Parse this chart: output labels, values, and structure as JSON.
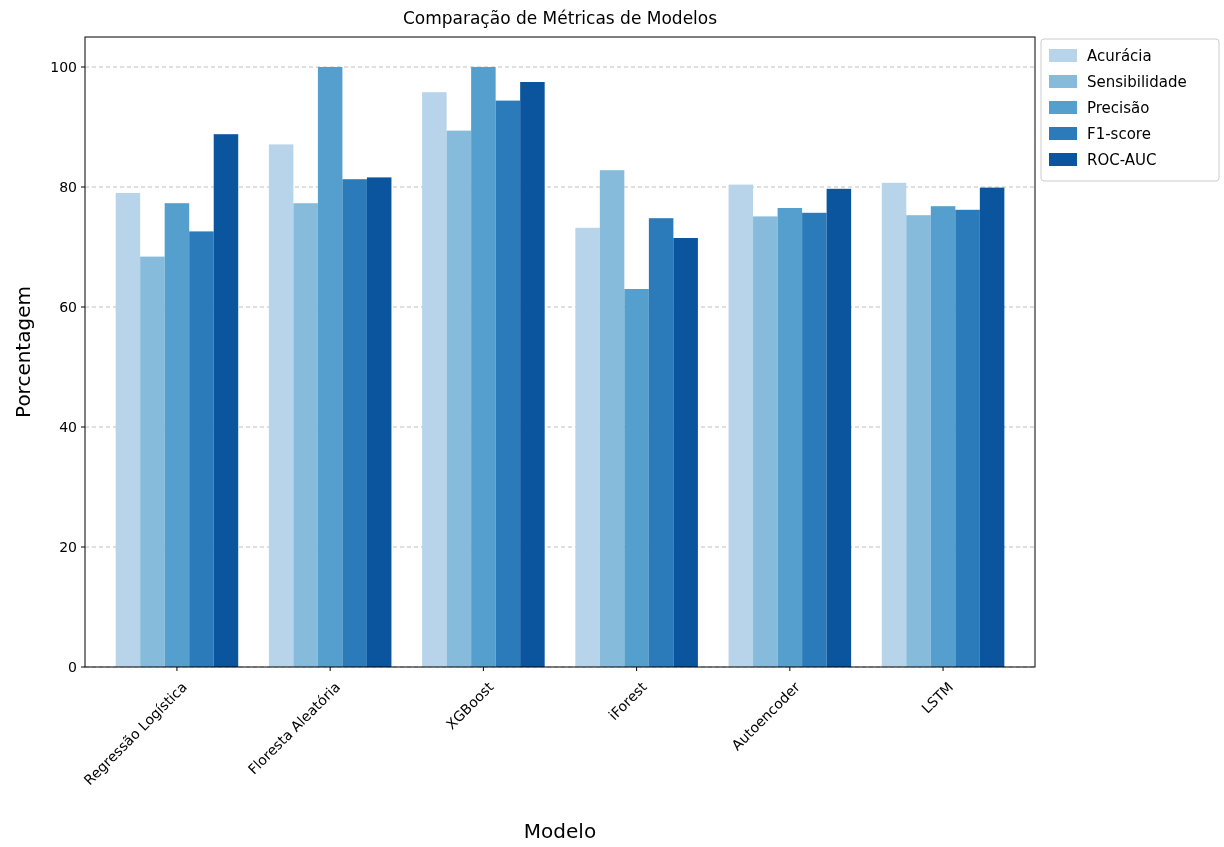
{
  "chart_data": {
    "type": "bar",
    "title": "Comparação de Métricas de Modelos",
    "xlabel": "Modelo",
    "ylabel": "Porcentagem",
    "categories": [
      "Regressão Logística",
      "Floresta Aleatória",
      "XGBoost",
      "iForest",
      "Autoencoder",
      "LSTM"
    ],
    "series": [
      {
        "name": "Acurácia",
        "color": "#b8d4ea",
        "values": [
          79.0,
          87.1,
          95.8,
          73.2,
          80.4,
          80.7
        ]
      },
      {
        "name": "Sensibilidade",
        "color": "#86bbdb",
        "values": [
          68.4,
          77.3,
          89.4,
          82.8,
          75.1,
          75.3
        ]
      },
      {
        "name": "Precisão",
        "color": "#549fcd",
        "values": [
          77.3,
          100,
          100,
          63.0,
          76.5,
          76.8
        ]
      },
      {
        "name": "F1-score",
        "color": "#2b7bba",
        "values": [
          72.6,
          81.3,
          94.4,
          74.8,
          75.7,
          76.2
        ]
      },
      {
        "name": "ROC-AUC",
        "color": "#0b559f",
        "values": [
          88.8,
          81.6,
          97.5,
          71.5,
          79.7,
          79.9
        ]
      }
    ],
    "ylim": [
      0,
      105
    ],
    "yticks": [
      0,
      20,
      40,
      60,
      80,
      100
    ],
    "grid": "y",
    "legend": "top right"
  }
}
